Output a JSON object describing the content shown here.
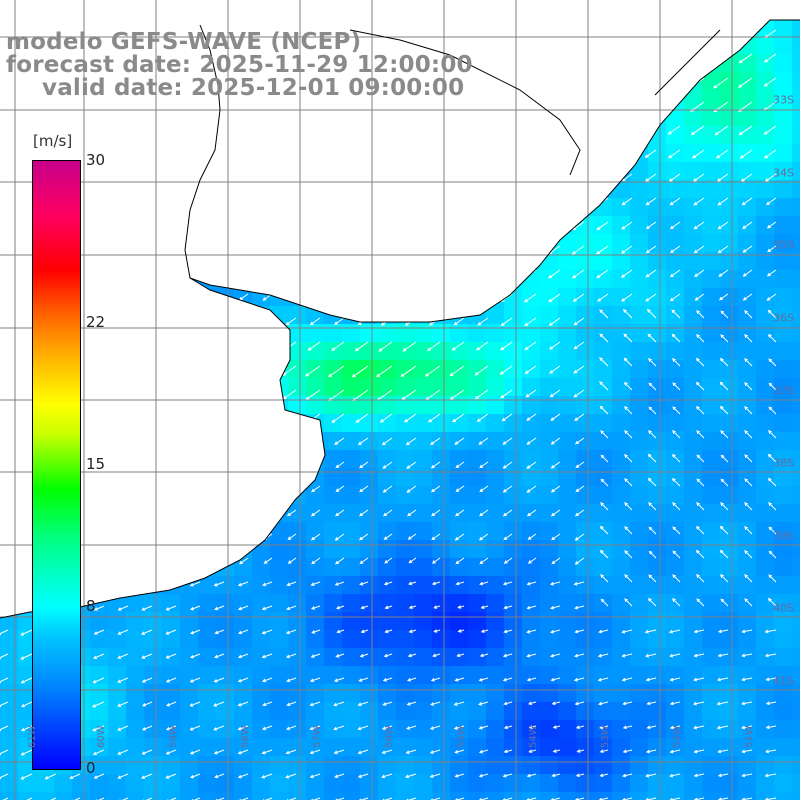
{
  "header": {
    "line1": "modelo GEFS-WAVE (NCEP)",
    "line2": "forecast date: 2025-11-29 12:00:00",
    "line3": "valid date: 2025-12-01 09:00:00"
  },
  "colorbar": {
    "unit": "[m/s]",
    "min": 0,
    "max": 30,
    "ticks": [
      "30",
      "22",
      "15",
      "8",
      "0"
    ],
    "tick_values": [
      30,
      22,
      15,
      8,
      0
    ],
    "colors": [
      "#0000ff",
      "#0080ff",
      "#00ffff",
      "#00ff00",
      "#ffff00",
      "#ff8000",
      "#ff0000",
      "#c8008c"
    ]
  },
  "lat_labels": [
    "33S",
    "34S",
    "35S",
    "36S",
    "37S",
    "38S",
    "39S",
    "40S",
    "41S"
  ],
  "lon_labels": [
    "61W",
    "60W",
    "59W",
    "58W",
    "57W",
    "56W",
    "55W",
    "54W",
    "53W",
    "52W",
    "51W"
  ],
  "map": {
    "variable": "wind speed and direction",
    "land_color": "#ffffff",
    "coast_color": "#000000",
    "grid_color": "#808080"
  }
}
